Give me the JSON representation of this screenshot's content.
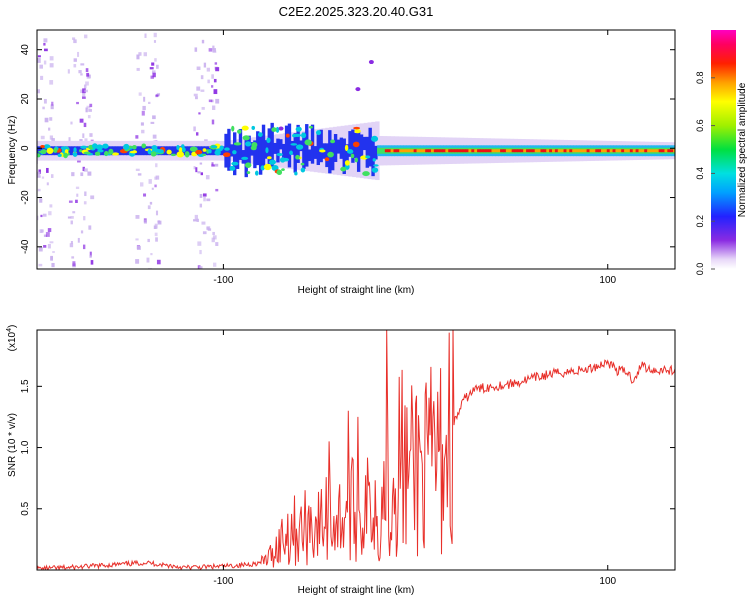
{
  "title": "C2E2.2025.323.20.40.G31",
  "chart_data": [
    {
      "type": "heatmap",
      "name": "spectrogram",
      "xlabel": "Height of straight line (km)",
      "ylabel": "Frequency (Hz)",
      "xlim": [
        -197,
        135
      ],
      "ylim": [
        -49,
        48
      ],
      "x_ticks": [
        -100,
        100
      ],
      "y_ticks": [
        -40,
        -20,
        0,
        20,
        40
      ],
      "colorbar": {
        "label": "Normalized spectral amplitude",
        "range": [
          0,
          1
        ],
        "ticks": [
          0.0,
          0.2,
          0.4,
          0.6,
          0.8
        ],
        "tick_labels": [
          "0.0",
          "0.2",
          "0.4",
          "0.6",
          "0.8"
        ],
        "colormap": "rainbow (white-violet-blue-cyan-green-yellow-orange-red-magenta)"
      },
      "features": {
        "carrier_frequency_hz": -1,
        "scintillation_region_km": [
          -100,
          -20
        ],
        "max_doppler_spread_hz": 10,
        "vertical_noise_bands_km": [
          -195,
          -175,
          -140,
          -110
        ]
      }
    },
    {
      "type": "line",
      "name": "snr",
      "xlabel": "Height of straight line (km)",
      "ylabel": "SNR (10 * v/v)",
      "exponent_label": "(x10",
      "exponent_power": "4",
      "xlim": [
        -197,
        135
      ],
      "ylim": [
        0,
        1.96
      ],
      "x_ticks": [
        -100,
        100
      ],
      "y_ticks": [
        0.5,
        1.0,
        1.5
      ],
      "y_tick_labels": [
        "0.5",
        "1.0",
        "1.5"
      ],
      "color": "#e8302a",
      "series": [
        {
          "name": "SNR",
          "x": [
            -197,
            -180,
            -160,
            -140,
            -120,
            -100,
            -90,
            -80,
            -75,
            -70,
            -65,
            -60,
            -55,
            -50,
            -45,
            -40,
            -35,
            -30,
            -25,
            -22,
            -20,
            -18,
            -15,
            -12,
            -10,
            -8,
            -5,
            -2,
            0,
            3,
            6,
            10,
            13,
            16,
            20,
            25,
            30,
            40,
            50,
            60,
            70,
            80,
            90,
            100,
            105,
            110,
            113,
            115,
            118,
            120,
            125,
            130,
            135
          ],
          "y": [
            0.01,
            0.02,
            0.04,
            0.06,
            0.02,
            0.03,
            0.04,
            0.06,
            0.12,
            0.25,
            0.35,
            0.3,
            0.4,
            0.35,
            0.45,
            0.4,
            0.55,
            0.4,
            0.5,
            0.6,
            0.45,
            0.55,
            0.65,
            0.75,
            0.85,
            0.95,
            0.78,
            0.8,
            0.9,
            0.85,
            0.8,
            0.95,
            0.9,
            1.05,
            1.2,
            1.38,
            1.47,
            1.5,
            1.52,
            1.56,
            1.6,
            1.62,
            1.64,
            1.7,
            1.63,
            1.62,
            1.55,
            1.6,
            1.68,
            1.65,
            1.63,
            1.64,
            1.62
          ]
        }
      ],
      "spikes": [
        {
          "x": -45,
          "y": 1.05
        },
        {
          "x": -35,
          "y": 1.3
        },
        {
          "x": -30,
          "y": 1.25
        },
        {
          "x": -15,
          "y": 1.96
        }
      ]
    }
  ]
}
